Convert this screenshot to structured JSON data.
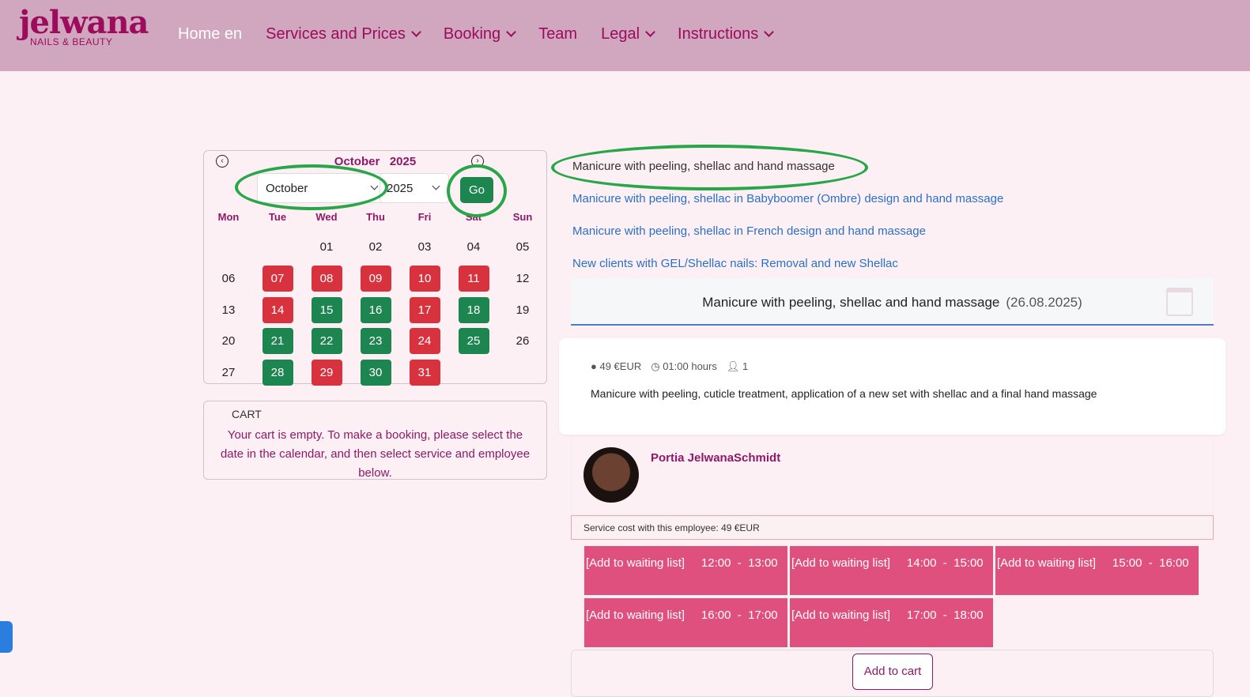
{
  "brand": {
    "name": "jelwana",
    "tagline": "NAILS & BEAUTY"
  },
  "nav": [
    {
      "label": "Home en",
      "dropdown": false,
      "active": true
    },
    {
      "label": "Services and Prices",
      "dropdown": true
    },
    {
      "label": "Booking",
      "dropdown": true
    },
    {
      "label": "Team",
      "dropdown": false
    },
    {
      "label": "Legal",
      "dropdown": true
    },
    {
      "label": "Instructions",
      "dropdown": true
    }
  ],
  "calendar": {
    "month_title": "October",
    "year_title": "2025",
    "month_select": "October",
    "year_select": "2025",
    "go_label": "Go",
    "weekdays": [
      "Mon",
      "Tue",
      "Wed",
      "Thu",
      "Fri",
      "Sat",
      "Sun"
    ],
    "first_weekday_offset": 2,
    "days": [
      {
        "d": "01",
        "s": ""
      },
      {
        "d": "02",
        "s": ""
      },
      {
        "d": "03",
        "s": ""
      },
      {
        "d": "04",
        "s": ""
      },
      {
        "d": "05",
        "s": ""
      },
      {
        "d": "06",
        "s": ""
      },
      {
        "d": "07",
        "s": "red"
      },
      {
        "d": "08",
        "s": "red"
      },
      {
        "d": "09",
        "s": "red"
      },
      {
        "d": "10",
        "s": "red"
      },
      {
        "d": "11",
        "s": "red"
      },
      {
        "d": "12",
        "s": ""
      },
      {
        "d": "13",
        "s": ""
      },
      {
        "d": "14",
        "s": "red"
      },
      {
        "d": "15",
        "s": "green"
      },
      {
        "d": "16",
        "s": "green"
      },
      {
        "d": "17",
        "s": "red"
      },
      {
        "d": "18",
        "s": "green"
      },
      {
        "d": "19",
        "s": ""
      },
      {
        "d": "20",
        "s": ""
      },
      {
        "d": "21",
        "s": "green"
      },
      {
        "d": "22",
        "s": "green"
      },
      {
        "d": "23",
        "s": "green"
      },
      {
        "d": "24",
        "s": "red"
      },
      {
        "d": "25",
        "s": "green"
      },
      {
        "d": "26",
        "s": ""
      },
      {
        "d": "27",
        "s": ""
      },
      {
        "d": "28",
        "s": "green"
      },
      {
        "d": "29",
        "s": "red"
      },
      {
        "d": "30",
        "s": "green"
      },
      {
        "d": "31",
        "s": "red"
      }
    ]
  },
  "cart": {
    "heading": "CART",
    "text": "Your cart is empty. To make a booking, please select the date in the calendar, and then select service and employee below."
  },
  "services": [
    "Manicure with peeling, shellac and hand massage",
    "Manicure with peeling, shellac in Babyboomer (Ombre) design and hand massage",
    "Manicure with peeling, shellac in French design and hand massage",
    "New clients with GEL/Shellac nails: Removal and new Shellac"
  ],
  "selected": {
    "title": "Manicure with peeling, shellac and hand massage",
    "date": "(26.08.2025)",
    "price": "49 €EUR",
    "duration": "01:00 hours",
    "persons": "1",
    "description": "Manicure with peeling, cuticle treatment, application of a new set with shellac and a final hand massage"
  },
  "employee": {
    "name": "Portia JelwanaSchmidt",
    "cost": "Service cost with this employee: 49 €EUR"
  },
  "slots": [
    "[Add to waiting list]     12:00  -  13:00",
    "[Add to waiting list]     14:00  -  15:00",
    "[Add to waiting list]     15:00  -  16:00",
    "[Add to waiting list]     16:00  -  17:00",
    "[Add to waiting list]     17:00  -  18:00"
  ],
  "add_to_cart": "Add to cart"
}
